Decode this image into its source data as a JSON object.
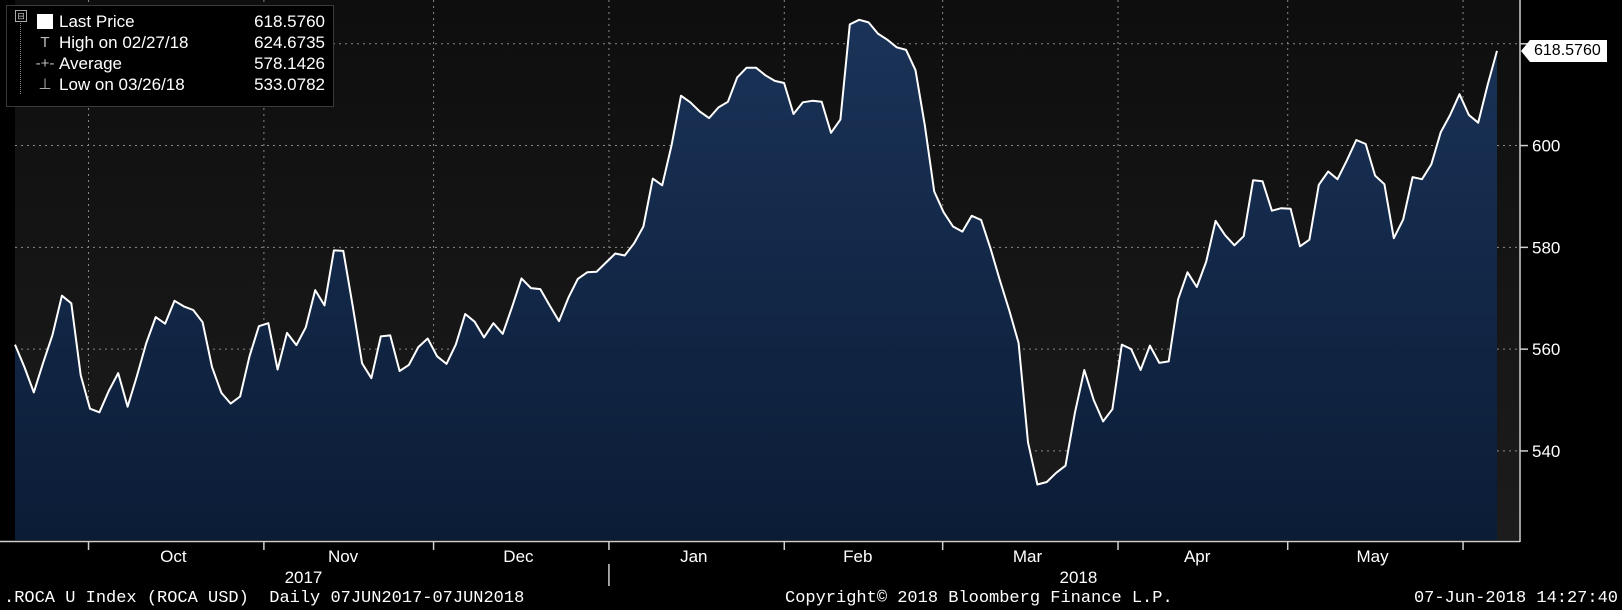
{
  "legend": {
    "collapse_symbol": "⊟",
    "rows": [
      {
        "label": "Last Price",
        "value": "618.5760",
        "glyph": "swatch"
      },
      {
        "label": "High on 02/27/18",
        "value": "624.6735",
        "glyph": "T"
      },
      {
        "label": "Average",
        "value": "578.1426",
        "glyph": "-+-"
      },
      {
        "label": "Low on 03/26/18",
        "value": "533.0782",
        "glyph": "⊥"
      }
    ]
  },
  "last_price_tag": "618.5760",
  "footer": {
    "left": ".ROCA U Index (ROCA USD)  Daily 07JUN2017-07JUN2018",
    "center": "Copyright© 2018 Bloomberg Finance L.P.",
    "right": "07-Jun-2018 14:27:40"
  },
  "colors": {
    "background": "#000000",
    "plot_background_top": "#0d0d0d",
    "area_fill_top": "#1a3358",
    "area_fill_bottom": "#0b1c36",
    "line": "#ffffff",
    "grid": "#888888"
  },
  "chart_data": {
    "type": "area",
    "title": "",
    "xlabel": "",
    "ylabel": "",
    "ylim": [
      522.5,
      628.6
    ],
    "y_ticks": [
      540,
      560,
      580,
      600
    ],
    "x_month_ticks": [
      "Oct",
      "Nov",
      "Dec",
      "Jan",
      "Feb",
      "Mar",
      "Apr",
      "May"
    ],
    "x_year_labels": [
      "2017",
      "2018"
    ],
    "grid": true,
    "legend_position": "top-left",
    "series": [
      {
        "name": "Last Price",
        "date_range": [
          "2017-09-18",
          "2018-06-07"
        ],
        "values": [
          560.9,
          556.5,
          551.5,
          557.3,
          562.8,
          570.5,
          569,
          554.9,
          548.3,
          547.6,
          551.8,
          555.3,
          548.7,
          554.7,
          561.2,
          566.3,
          565,
          569.5,
          568.4,
          567.7,
          565.3,
          556.5,
          551.4,
          549.3,
          550.7,
          558.6,
          564.5,
          565.1,
          556,
          563.2,
          560.8,
          564.3,
          571.6,
          568.6,
          579.4,
          579.3,
          568.5,
          557.2,
          554.3,
          562.5,
          562.7,
          555.7,
          556.9,
          560.4,
          562.1,
          558.6,
          557.1,
          560.9,
          566.9,
          565.4,
          562.3,
          565.1,
          563,
          568.3,
          573.9,
          572,
          571.8,
          568.6,
          565.5,
          570.1,
          573.8,
          575.1,
          575.2,
          577,
          578.8,
          578.4,
          580.8,
          584.1,
          593.5,
          592.2,
          600.1,
          609.8,
          608.5,
          606.7,
          605.4,
          607.5,
          608.6,
          613.4,
          615.3,
          615.3,
          613.8,
          612.7,
          612.3,
          606.2,
          608.5,
          608.8,
          608.6,
          602.5,
          605.1,
          623.8,
          624.7,
          624.2,
          622,
          620.8,
          619.3,
          618.8,
          614.8,
          604,
          591,
          586.9,
          584.1,
          583.1,
          586.2,
          585.4,
          579.8,
          573.5,
          567.6,
          561.2,
          541.7,
          533.4,
          533.9,
          535.7,
          537.1,
          547.5,
          555.9,
          550,
          545.8,
          548.2,
          560.9,
          560,
          555.9,
          560.7,
          557.3,
          557.6,
          569.8,
          575.1,
          572.2,
          577.2,
          585.2,
          582.4,
          580.4,
          582.2,
          593.2,
          593,
          587.2,
          587.7,
          587.6,
          580.2,
          581.5,
          592.3,
          594.9,
          593.4,
          597.1,
          601.1,
          600.3,
          594.1,
          592.4,
          581.8,
          585.5,
          593.8,
          593.4,
          596.3,
          602.6,
          606,
          610.1,
          606,
          604.5,
          611.9,
          618.6
        ]
      }
    ]
  }
}
